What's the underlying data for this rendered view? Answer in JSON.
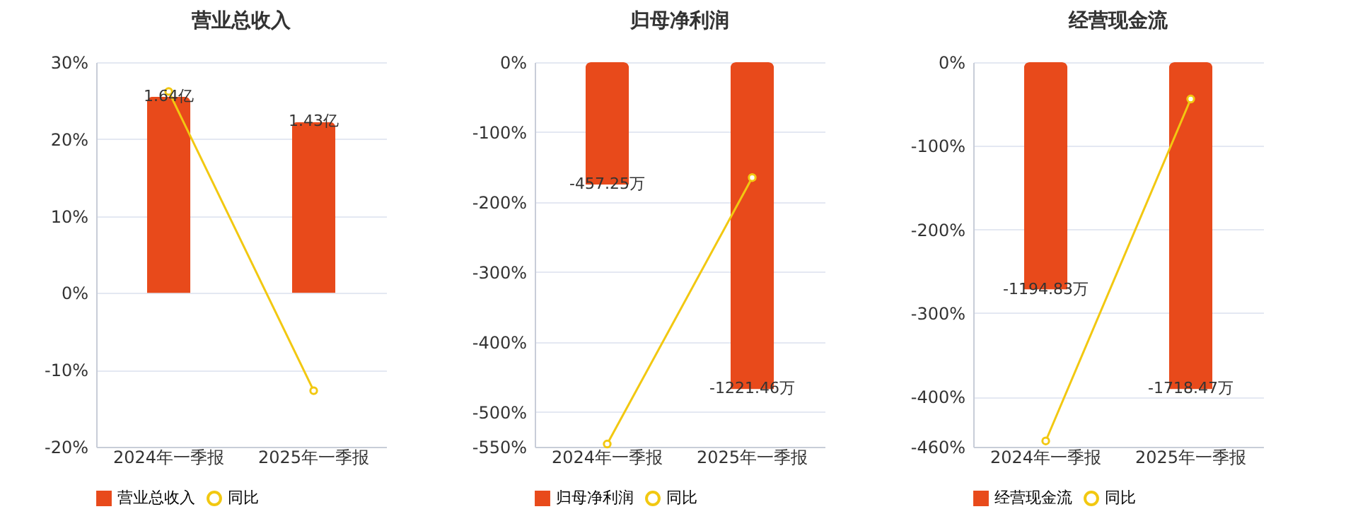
{
  "chart_data": [
    {
      "type": "bar",
      "title": "营业总收入",
      "categories": [
        "2024年一季报",
        "2025年一季报"
      ],
      "series": [
        {
          "name": "营业总收入",
          "axis": "y2",
          "color": "#e84a1b",
          "values": [
            1.64,
            1.43
          ],
          "value_labels": [
            "1.64亿",
            "1.43亿"
          ]
        },
        {
          "name": "同比",
          "type": "line",
          "color": "#f2c811",
          "values": [
            26.2,
            -12.7
          ]
        }
      ],
      "ylim": [
        -20,
        30
      ],
      "yticks": [
        {
          "value": -20,
          "label": "-20%"
        },
        {
          "value": -10,
          "label": "-10%"
        },
        {
          "value": 0,
          "label": "0%"
        },
        {
          "value": 10,
          "label": "10%"
        },
        {
          "value": 20,
          "label": "20%"
        },
        {
          "value": 30,
          "label": "30%"
        }
      ],
      "grid": "y",
      "legend": "bottom",
      "marker": "circle"
    },
    {
      "type": "bar",
      "title": "归母净利润",
      "categories": [
        "2024年一季报",
        "2025年一季报"
      ],
      "series": [
        {
          "name": "归母净利润",
          "axis": "y2",
          "color": "#e84a1b",
          "values": [
            -457.25,
            -1221.46
          ],
          "value_labels": [
            "-457.25万",
            "-1221.46万"
          ]
        },
        {
          "name": "同比",
          "type": "line",
          "color": "#f2c811",
          "values": [
            -546,
            -165
          ]
        }
      ],
      "ylim": [
        -550,
        0
      ],
      "yticks": [
        {
          "value": -550,
          "label": "-550%"
        },
        {
          "value": -500,
          "label": "-500%"
        },
        {
          "value": -400,
          "label": "-400%"
        },
        {
          "value": -300,
          "label": "-300%"
        },
        {
          "value": -200,
          "label": "-200%"
        },
        {
          "value": -100,
          "label": "-100%"
        },
        {
          "value": 0,
          "label": "0%"
        }
      ],
      "grid": "y",
      "legend": "bottom",
      "marker": "circle"
    },
    {
      "type": "bar",
      "title": "经营现金流",
      "categories": [
        "2024年一季报",
        "2025年一季报"
      ],
      "series": [
        {
          "name": "经营现金流",
          "axis": "y2",
          "color": "#e84a1b",
          "values": [
            -1194.83,
            -1718.47
          ],
          "value_labels": [
            "-1194.83万",
            "-1718.47万"
          ]
        },
        {
          "name": "同比",
          "type": "line",
          "color": "#f2c811",
          "values": [
            -453,
            -44
          ]
        }
      ],
      "ylim": [
        -460,
        0
      ],
      "yticks": [
        {
          "value": -460,
          "label": "-460%"
        },
        {
          "value": -400,
          "label": "-400%"
        },
        {
          "value": -300,
          "label": "-300%"
        },
        {
          "value": -200,
          "label": "-200%"
        },
        {
          "value": -100,
          "label": "-100%"
        },
        {
          "value": 0,
          "label": "0%"
        }
      ],
      "grid": "y",
      "legend": "bottom",
      "marker": "circle"
    }
  ]
}
